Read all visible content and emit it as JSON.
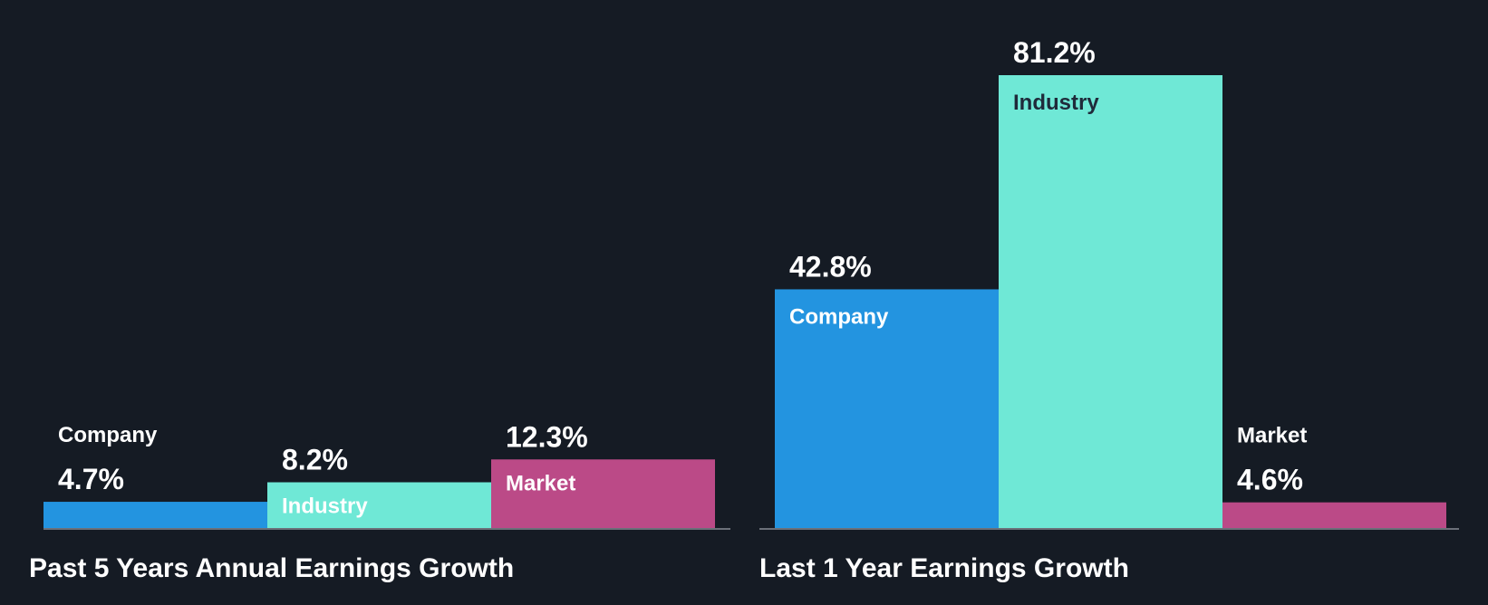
{
  "colors": {
    "background": "#151b24",
    "company": "#2394e0",
    "industry": "#6fe8d6",
    "market": "#bb4a87",
    "text_light": "#ffffff",
    "text_dark": "#1f2a3a",
    "baseline": "#6b7079"
  },
  "chart_data": [
    {
      "type": "bar",
      "title": "Past 5 Years Annual Earnings Growth",
      "categories": [
        "Company",
        "Industry",
        "Market"
      ],
      "values": [
        4.7,
        8.2,
        12.3
      ],
      "value_labels": [
        "4.7%",
        "8.2%",
        "12.3%"
      ],
      "unit": "%",
      "ylim": [
        0,
        81.2
      ],
      "grid": false,
      "legend": "none"
    },
    {
      "type": "bar",
      "title": "Last 1 Year Earnings Growth",
      "categories": [
        "Company",
        "Industry",
        "Market"
      ],
      "values": [
        42.8,
        81.2,
        4.6
      ],
      "value_labels": [
        "42.8%",
        "81.2%",
        "4.6%"
      ],
      "unit": "%",
      "ylim": [
        0,
        81.2
      ],
      "grid": false,
      "legend": "none"
    }
  ]
}
